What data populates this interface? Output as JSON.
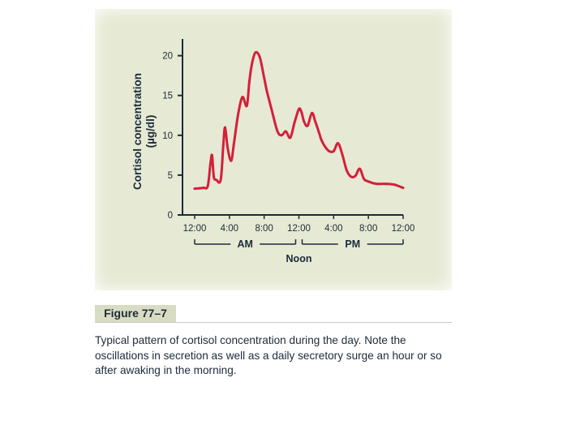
{
  "chart_data": {
    "type": "line",
    "ylabel_line1": "Cortisol concentration",
    "ylabel_line2": "(µg/dl)",
    "xlabel": "",
    "x_tick_labels": [
      "12:00",
      "4:00",
      "8:00",
      "12:00",
      "4:00",
      "8:00",
      "12:00"
    ],
    "y_ticks": [
      0,
      5,
      10,
      15,
      20
    ],
    "ylim": [
      0,
      22
    ],
    "xlim": [
      0,
      24
    ],
    "x_sub_labels": {
      "am": "AM",
      "pm": "PM",
      "noon": "Noon"
    },
    "grid": false,
    "series": [
      {
        "color": "#d41f3a",
        "x": [
          0.0,
          1.0,
          1.5,
          1.8,
          2.0,
          2.2,
          2.5,
          3.0,
          3.3,
          3.5,
          3.8,
          4.2,
          4.5,
          5.0,
          5.5,
          6.0,
          6.3,
          6.6,
          7.0,
          7.5,
          8.0,
          8.3,
          8.8,
          9.5,
          10.0,
          10.5,
          11.0,
          11.5,
          12.0,
          12.3,
          12.6,
          13.0,
          13.5,
          13.9,
          14.3,
          14.6,
          15.0,
          15.5,
          16.0,
          16.5,
          17.0,
          17.5,
          18.0,
          18.5,
          19.0,
          19.5,
          20.0,
          20.5,
          21.0,
          22.0,
          23.0,
          24.0
        ],
        "y": [
          3.3,
          3.4,
          3.6,
          6.3,
          7.5,
          4.8,
          4.4,
          4.4,
          8.8,
          11.0,
          8.4,
          6.8,
          8.8,
          12.6,
          14.8,
          13.7,
          16.8,
          19.0,
          20.4,
          19.8,
          17.2,
          15.6,
          13.5,
          10.6,
          10.0,
          10.5,
          9.7,
          11.6,
          13.3,
          12.9,
          11.7,
          11.2,
          12.8,
          11.7,
          10.4,
          9.4,
          8.6,
          8.0,
          8.0,
          9.0,
          7.6,
          5.6,
          4.8,
          4.9,
          5.8,
          4.5,
          4.2,
          4.0,
          3.9,
          3.9,
          3.8,
          3.4
        ]
      }
    ]
  },
  "figure": {
    "label": "Figure 77–7",
    "caption": "Typical pattern of cortisol concentration during the day. Note the oscillations in secretion as well as a daily secretory surge an hour or so after awaking in the morning."
  }
}
